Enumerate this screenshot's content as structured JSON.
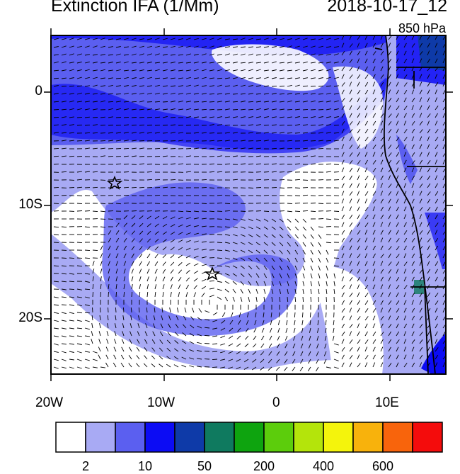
{
  "title": {
    "left": "Extinction IFA (1/Mm)",
    "right": "2018-10-17_12",
    "level": "850 hPa"
  },
  "axes": {
    "lat_ticks": [
      "0",
      "10S",
      "20S"
    ],
    "lon_ticks": [
      "20W",
      "10W",
      "0",
      "10E"
    ]
  },
  "colorbar": {
    "colors": [
      "#ffffff",
      "#a8aaf4",
      "#5b5ff0",
      "#0c0cf4",
      "#0e3aa8",
      "#0f7a5f",
      "#0ea40f",
      "#5ccd0c",
      "#b4e40b",
      "#f4f40c",
      "#f8b20c",
      "#f8640c",
      "#f40c0c"
    ],
    "labels": [
      "2",
      "10",
      "50",
      "200",
      "400",
      "600"
    ]
  },
  "markers": [
    "star",
    "star"
  ],
  "colors": {
    "land_outline": "#000000",
    "coastline": "#000000"
  }
}
